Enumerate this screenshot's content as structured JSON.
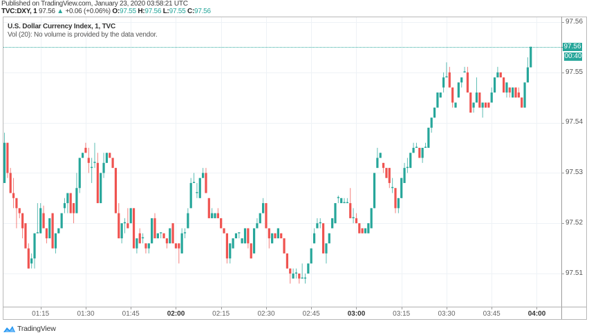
{
  "header": {
    "published": "Published on TradingView.com, January 23, 2020 03:58:21 UTC",
    "symbol": "TVC:DXY, 1",
    "last": "97.56",
    "change_arrow": "▲",
    "change": "+0.06 (+0.06%)",
    "ohlc": [
      {
        "label": "O:",
        "value": "97.55"
      },
      {
        "label": "H:",
        "value": "97.56"
      },
      {
        "label": "L:",
        "value": "97.55"
      },
      {
        "label": "C:",
        "value": "97.56"
      }
    ]
  },
  "legend": {
    "title": "U.S. Dollar Currency Index, 1, TVC",
    "volume_note": "Vol (20): No volume is provided by the data vendor."
  },
  "price_axis": {
    "labels": [
      "97.56",
      "97.55",
      "97.54",
      "97.53",
      "97.52",
      "97.51"
    ],
    "current_price": "97.56",
    "countdown": "00:40"
  },
  "time_axis": {
    "labels": [
      "01:15",
      "01:30",
      "01:45",
      "02:00",
      "02:15",
      "02:30",
      "02:45",
      "03:00",
      "03:15",
      "03:30",
      "03:45",
      "04:00"
    ]
  },
  "footer": {
    "brand": "TradingView",
    "logo_icon": "tradingview-cloud-icon"
  },
  "colors": {
    "up": "#26a69a",
    "down": "#ef5350",
    "grid": "#eef2f6",
    "axis_text": "#555555",
    "brand_blue": "#2196f3"
  },
  "chart_data": {
    "type": "candlestick",
    "title": "U.S. Dollar Currency Index, 1, TVC",
    "symbol": "TVC:DXY",
    "interval_minutes": 1,
    "start_time": "01:03",
    "xlabel": "",
    "ylabel": "",
    "x_ticks": [
      "01:15",
      "01:30",
      "01:45",
      "02:00",
      "02:15",
      "02:30",
      "02:45",
      "03:00",
      "03:15",
      "03:30",
      "03:45",
      "04:00"
    ],
    "x_ticks_bold": [
      "02:00",
      "03:00",
      "04:00"
    ],
    "y_ticks": [
      97.56,
      97.55,
      97.54,
      97.53,
      97.52,
      97.51
    ],
    "ylim": [
      97.5034,
      97.5611
    ],
    "grid": true,
    "last_price": 97.5551,
    "ohlc_fields": [
      "open",
      "high",
      "low",
      "close"
    ],
    "candles": [
      [
        97.528,
        97.538,
        97.528,
        97.536
      ],
      [
        97.536,
        97.536,
        97.529,
        97.53
      ],
      [
        97.53,
        97.531,
        97.526,
        97.526
      ],
      [
        97.526,
        97.529,
        97.523,
        97.525
      ],
      [
        97.525,
        97.525,
        97.519,
        97.523
      ],
      [
        97.523,
        97.523,
        97.521,
        97.522
      ],
      [
        97.522,
        97.522,
        97.517,
        97.519
      ],
      [
        97.52,
        97.52,
        97.515,
        97.515
      ],
      [
        97.515,
        97.516,
        97.511,
        97.511
      ],
      [
        97.512,
        97.514,
        97.511,
        97.513
      ],
      [
        97.513,
        97.518,
        97.511,
        97.518
      ],
      [
        97.518,
        97.524,
        97.518,
        97.5182
      ],
      [
        97.518,
        97.524,
        97.518,
        97.523
      ],
      [
        97.522,
        97.5235,
        97.519,
        97.519
      ],
      [
        97.519,
        97.519,
        97.516,
        97.517
      ],
      [
        97.517,
        97.521,
        97.517,
        97.521
      ],
      [
        97.522,
        97.522,
        97.515,
        97.515
      ],
      [
        97.515,
        97.518,
        97.514,
        97.518
      ],
      [
        97.518,
        97.519,
        97.518,
        97.519
      ],
      [
        97.519,
        97.522,
        97.519,
        97.522
      ],
      [
        97.523,
        97.525,
        97.522,
        97.524
      ],
      [
        97.524,
        97.526,
        97.522,
        97.526
      ],
      [
        97.526,
        97.526,
        97.522,
        97.522
      ],
      [
        97.524,
        97.524,
        97.52,
        97.522
      ],
      [
        97.522,
        97.53,
        97.522,
        97.527
      ],
      [
        97.527,
        97.533,
        97.526,
        97.533
      ],
      [
        97.533,
        97.534,
        97.533,
        97.534
      ],
      [
        97.535,
        97.536,
        97.534,
        97.534
      ],
      [
        97.533,
        97.535,
        97.53,
        97.532
      ],
      [
        97.531,
        97.533,
        97.528,
        97.5312
      ],
      [
        97.532,
        97.536,
        97.531,
        97.5322
      ],
      [
        97.532,
        97.534,
        97.524,
        97.524
      ],
      [
        97.524,
        97.53,
        97.524,
        97.53
      ],
      [
        97.53,
        97.534,
        97.529,
        97.532
      ],
      [
        97.532,
        97.534,
        97.532,
        97.534
      ],
      [
        97.534,
        97.534,
        97.533,
        97.533
      ],
      [
        97.533,
        97.533,
        97.531,
        97.531
      ],
      [
        97.531,
        97.531,
        97.522,
        97.522
      ],
      [
        97.522,
        97.524,
        97.517,
        97.517
      ],
      [
        97.517,
        97.52,
        97.516,
        97.52
      ],
      [
        97.52,
        97.521,
        97.518,
        97.5202
      ],
      [
        97.52,
        97.523,
        97.519,
        97.519
      ],
      [
        97.52,
        97.523,
        97.52,
        97.523
      ],
      [
        97.523,
        97.523,
        97.515,
        97.515
      ],
      [
        97.515,
        97.517,
        97.514,
        97.517
      ],
      [
        97.518,
        97.519,
        97.516,
        97.516
      ],
      [
        97.517,
        97.518,
        97.516,
        97.5172
      ],
      [
        97.516,
        97.516,
        97.514,
        97.515
      ],
      [
        97.515,
        97.516,
        97.514,
        97.516
      ],
      [
        97.516,
        97.521,
        97.516,
        97.521
      ],
      [
        97.521,
        97.522,
        97.517,
        97.517
      ],
      [
        97.517,
        97.518,
        97.517,
        97.518
      ],
      [
        97.518,
        97.518,
        97.517,
        97.5182
      ],
      [
        97.518,
        97.518,
        97.517,
        97.517
      ],
      [
        97.517,
        97.517,
        97.515,
        97.516
      ],
      [
        97.516,
        97.519,
        97.516,
        97.519
      ],
      [
        97.52,
        97.52,
        97.516,
        97.516
      ],
      [
        97.516,
        97.516,
        97.515,
        97.515
      ],
      [
        97.516,
        97.516,
        97.512,
        97.515
      ],
      [
        97.514,
        97.519,
        97.514,
        97.518
      ],
      [
        97.518,
        97.519,
        97.517,
        97.5182
      ],
      [
        97.519,
        97.523,
        97.519,
        97.522
      ],
      [
        97.523,
        97.529,
        97.523,
        97.528
      ],
      [
        97.528,
        97.53,
        97.528,
        97.5282
      ],
      [
        97.526,
        97.528,
        97.525,
        97.5262
      ],
      [
        97.525,
        97.529,
        97.525,
        97.529
      ],
      [
        97.529,
        97.531,
        97.529,
        97.53
      ],
      [
        97.53,
        97.531,
        97.526,
        97.526
      ],
      [
        97.525,
        97.525,
        97.521,
        97.521
      ],
      [
        97.521,
        97.523,
        97.521,
        97.522
      ],
      [
        97.521,
        97.522,
        97.521,
        97.522
      ],
      [
        97.522,
        97.523,
        97.521,
        97.521
      ],
      [
        97.521,
        97.521,
        97.519,
        97.519
      ],
      [
        97.519,
        97.519,
        97.518,
        97.518
      ],
      [
        97.518,
        97.518,
        97.512,
        97.513
      ],
      [
        97.513,
        97.516,
        97.512,
        97.516
      ],
      [
        97.515,
        97.517,
        97.515,
        97.517
      ],
      [
        97.517,
        97.518,
        97.517,
        97.518
      ],
      [
        97.518,
        97.518,
        97.517,
        97.5182
      ],
      [
        97.516,
        97.517,
        97.516,
        97.517
      ],
      [
        97.516,
        97.519,
        97.516,
        97.519
      ],
      [
        97.519,
        97.519,
        97.515,
        97.516
      ],
      [
        97.516,
        97.516,
        97.513,
        97.513
      ],
      [
        97.514,
        97.519,
        97.514,
        97.519
      ],
      [
        97.519,
        97.521,
        97.519,
        97.52
      ],
      [
        97.52,
        97.522,
        97.52,
        97.522
      ],
      [
        97.522,
        97.525,
        97.522,
        97.524
      ],
      [
        97.524,
        97.524,
        97.519,
        97.519
      ],
      [
        97.519,
        97.519,
        97.515,
        97.517
      ],
      [
        97.516,
        97.518,
        97.516,
        97.518
      ],
      [
        97.518,
        97.518,
        97.517,
        97.517
      ],
      [
        97.517,
        97.519,
        97.517,
        97.519
      ],
      [
        97.518,
        97.518,
        97.517,
        97.517
      ],
      [
        97.517,
        97.517,
        97.514,
        97.514
      ],
      [
        97.514,
        97.514,
        97.511,
        97.511
      ],
      [
        97.511,
        97.511,
        97.508,
        97.51
      ],
      [
        97.509,
        97.511,
        97.509,
        97.51
      ],
      [
        97.51,
        97.511,
        97.509,
        97.5102
      ],
      [
        97.51,
        97.51,
        97.508,
        97.509
      ],
      [
        97.509,
        97.512,
        97.509,
        97.5092
      ],
      [
        97.509,
        97.51,
        97.508,
        97.5092
      ],
      [
        97.51,
        97.512,
        97.51,
        97.512
      ],
      [
        97.512,
        97.515,
        97.512,
        97.515
      ],
      [
        97.516,
        97.519,
        97.516,
        97.518
      ],
      [
        97.519,
        97.521,
        97.519,
        97.52
      ],
      [
        97.52,
        97.521,
        97.519,
        97.5202
      ],
      [
        97.52,
        97.52,
        97.514,
        97.514
      ],
      [
        97.514,
        97.516,
        97.512,
        97.516
      ],
      [
        97.516,
        97.518,
        97.516,
        97.518
      ],
      [
        97.519,
        97.521,
        97.519,
        97.521
      ],
      [
        97.52,
        97.524,
        97.52,
        97.524
      ],
      [
        97.525,
        97.5255,
        97.524,
        97.5252
      ],
      [
        97.524,
        97.525,
        97.524,
        97.525
      ],
      [
        97.524,
        97.525,
        97.524,
        97.5242
      ],
      [
        97.524,
        97.525,
        97.524,
        97.5242
      ],
      [
        97.524,
        97.527,
        97.521,
        97.521
      ],
      [
        97.521,
        97.523,
        97.52,
        97.5212
      ],
      [
        97.521,
        97.522,
        97.52,
        97.52
      ],
      [
        97.52,
        97.52,
        97.518,
        97.518
      ],
      [
        97.519,
        97.519,
        97.518,
        97.518
      ],
      [
        97.518,
        97.519,
        97.518,
        97.519
      ],
      [
        97.518,
        97.52,
        97.518,
        97.52
      ],
      [
        97.519,
        97.523,
        97.519,
        97.523
      ],
      [
        97.523,
        97.53,
        97.523,
        97.53
      ],
      [
        97.531,
        97.535,
        97.531,
        97.533
      ],
      [
        97.533,
        97.534,
        97.533,
        97.534
      ],
      [
        97.532,
        97.532,
        97.53,
        97.531
      ],
      [
        97.531,
        97.531,
        97.529,
        97.529
      ],
      [
        97.531,
        97.531,
        97.527,
        97.528
      ],
      [
        97.527,
        97.529,
        97.526,
        97.5272
      ],
      [
        97.527,
        97.527,
        97.522,
        97.523
      ],
      [
        97.523,
        97.525,
        97.522,
        97.525
      ],
      [
        97.525,
        97.529,
        97.525,
        97.529
      ],
      [
        97.528,
        97.532,
        97.528,
        97.531
      ],
      [
        97.531,
        97.533,
        97.53,
        97.5312
      ],
      [
        97.531,
        97.534,
        97.531,
        97.534
      ],
      [
        97.534,
        97.536,
        97.534,
        97.535
      ],
      [
        97.535,
        97.536,
        97.535,
        97.5352
      ],
      [
        97.535,
        97.535,
        97.533,
        97.533
      ],
      [
        97.533,
        97.535,
        97.532,
        97.535
      ],
      [
        97.535,
        97.536,
        97.535,
        97.5352
      ],
      [
        97.535,
        97.539,
        97.535,
        97.539
      ],
      [
        97.539,
        97.541,
        97.538,
        97.541
      ],
      [
        97.541,
        97.543,
        97.541,
        97.543
      ],
      [
        97.543,
        97.546,
        97.543,
        97.546
      ],
      [
        97.545,
        97.546,
        97.545,
        97.546
      ],
      [
        97.547,
        97.55,
        97.546,
        97.549
      ],
      [
        97.549,
        97.552,
        97.549,
        97.5492
      ],
      [
        97.55,
        97.5511,
        97.547,
        97.547
      ],
      [
        97.547,
        97.547,
        97.543,
        97.544
      ],
      [
        97.543,
        97.544,
        97.543,
        97.544
      ],
      [
        97.545,
        97.548,
        97.545,
        97.548
      ],
      [
        97.548,
        97.549,
        97.547,
        97.549
      ],
      [
        97.55,
        97.5511,
        97.55,
        97.5502
      ],
      [
        97.55,
        97.5511,
        97.546,
        97.546
      ],
      [
        97.546,
        97.546,
        97.542,
        97.542
      ],
      [
        97.543,
        97.544,
        97.542,
        97.544
      ],
      [
        97.544,
        97.549,
        97.544,
        97.546
      ],
      [
        97.546,
        97.546,
        97.543,
        97.543
      ],
      [
        97.543,
        97.544,
        97.541,
        97.544
      ],
      [
        97.544,
        97.544,
        97.543,
        97.543
      ],
      [
        97.544,
        97.544,
        97.543,
        97.543
      ],
      [
        97.544,
        97.547,
        97.544,
        97.546
      ],
      [
        97.546,
        97.549,
        97.546,
        97.549
      ],
      [
        97.549,
        97.5511,
        97.549,
        97.55
      ],
      [
        97.55,
        97.55,
        97.549,
        97.549
      ],
      [
        97.549,
        97.549,
        97.546,
        97.546
      ],
      [
        97.546,
        97.548,
        97.545,
        97.548
      ],
      [
        97.547,
        97.547,
        97.545,
        97.546
      ],
      [
        97.545,
        97.547,
        97.545,
        97.547
      ],
      [
        97.547,
        97.547,
        97.545,
        97.545
      ],
      [
        97.546,
        97.547,
        97.545,
        97.545
      ],
      [
        97.545,
        97.545,
        97.543,
        97.543
      ],
      [
        97.543,
        97.548,
        97.543,
        97.548
      ],
      [
        97.548,
        97.553,
        97.548,
        97.551
      ],
      [
        97.551,
        97.5551,
        97.551,
        97.5551
      ]
    ]
  }
}
